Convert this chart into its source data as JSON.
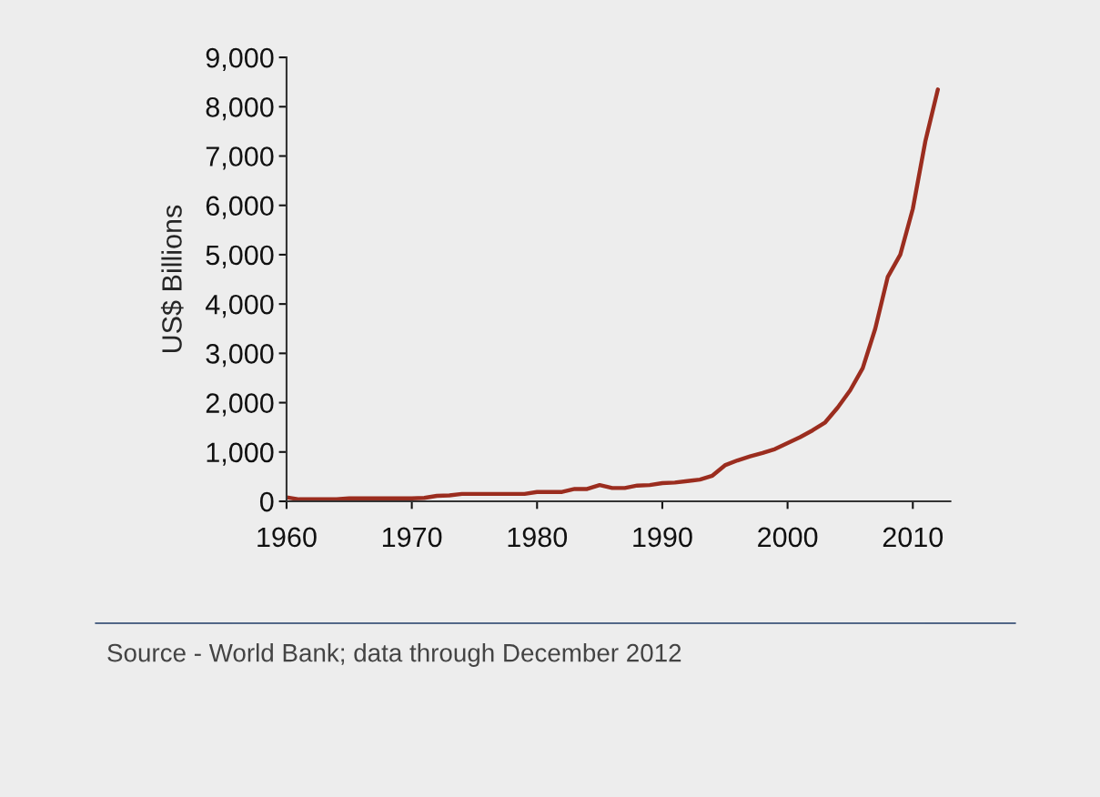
{
  "chart_data": {
    "type": "line",
    "ylabel": "US$ Billions",
    "x": [
      1960,
      1961,
      1962,
      1963,
      1964,
      1965,
      1966,
      1967,
      1968,
      1969,
      1970,
      1971,
      1972,
      1973,
      1974,
      1975,
      1976,
      1977,
      1978,
      1979,
      1980,
      1981,
      1982,
      1983,
      1984,
      1985,
      1986,
      1987,
      1988,
      1989,
      1990,
      1991,
      1992,
      1993,
      1994,
      1995,
      1996,
      1997,
      1998,
      1999,
      2000,
      2001,
      2002,
      2003,
      2004,
      2005,
      2006,
      2007,
      2008,
      2009,
      2010,
      2011,
      2012
    ],
    "series": [
      {
        "color": "#9b2d1f",
        "values": [
          80,
          40,
          40,
          40,
          40,
          60,
          60,
          60,
          60,
          60,
          60,
          70,
          110,
          120,
          150,
          150,
          150,
          150,
          150,
          150,
          190,
          190,
          190,
          250,
          250,
          330,
          270,
          270,
          320,
          330,
          370,
          380,
          410,
          440,
          520,
          730,
          830,
          910,
          980,
          1060,
          1180,
          1300,
          1440,
          1600,
          1900,
          2250,
          2700,
          3500,
          4550,
          5000,
          5930,
          7300,
          8350
        ]
      }
    ],
    "xlim": [
      1960,
      2013
    ],
    "xticks": [
      1960,
      1970,
      1980,
      1990,
      2000,
      2010
    ],
    "ylim": [
      0,
      9000
    ],
    "yticks": [
      {
        "value": 0,
        "label": "0"
      },
      {
        "value": 1000,
        "label": "1,000"
      },
      {
        "value": 2000,
        "label": "2,000"
      },
      {
        "value": 3000,
        "label": "3,000"
      },
      {
        "value": 4000,
        "label": "4,000"
      },
      {
        "value": 5000,
        "label": "5,000"
      },
      {
        "value": 6000,
        "label": "6,000"
      },
      {
        "value": 7000,
        "label": "7,000"
      },
      {
        "value": 8000,
        "label": "8,000"
      },
      {
        "value": 9000,
        "label": "9,000"
      }
    ],
    "grid": false,
    "legend": false,
    "annotations": [
      "Source - World Bank; data through December 2012"
    ]
  }
}
